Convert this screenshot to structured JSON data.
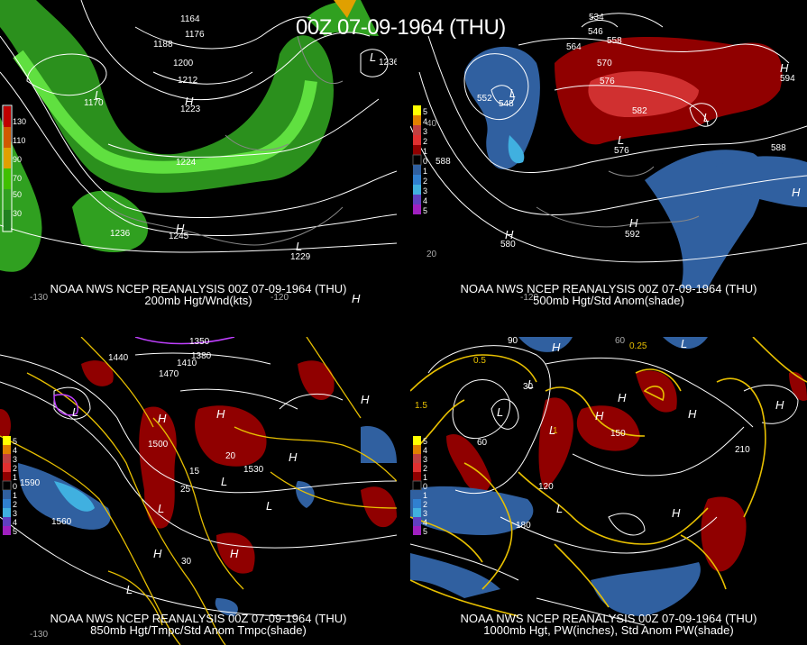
{
  "title": "00Z 07-09-1964 (THU)",
  "panels": [
    {
      "caption_line1": "NOAA NWS NCEP REANALYSIS 00Z 07-09-1964 (THU)",
      "caption_line2": "200mb Hgt/Wnd(kts)",
      "legend": [
        "130",
        "110",
        "90",
        "70",
        "50",
        "30"
      ],
      "legend_colors": [
        "#c00000",
        "#d05a00",
        "#e0a000",
        "#40c000",
        "#30a020",
        "#208020"
      ],
      "contours": [
        "1164",
        "1176",
        "1188",
        "1200",
        "1212",
        "1224",
        "1236",
        "1170",
        "1223",
        "1245",
        "1229",
        "1236"
      ],
      "lon_labels": [
        "-130",
        "-120"
      ]
    },
    {
      "caption_line1": "NOAA NWS NCEP REANALYSIS 00Z 07-09-1964 (THU)",
      "caption_line2": "500mb Hgt/Std Anom(shade)",
      "legend": [
        "5",
        "4",
        "3",
        "2",
        "1",
        "0",
        "1",
        "2",
        "3",
        "4",
        "5"
      ],
      "legend_colors": [
        "#ffff00",
        "#e08000",
        "#c04040",
        "#e03030",
        "#900000",
        "#000000",
        "#3060a0",
        "#3080d0",
        "#40b0e0",
        "#6040c0",
        "#a020c0"
      ],
      "contours": [
        "534",
        "546",
        "558",
        "564",
        "570",
        "576",
        "582",
        "588",
        "552",
        "548",
        "576",
        "594",
        "580",
        "592",
        "588"
      ],
      "lon_labels": [
        "-120",
        "40",
        "20"
      ]
    },
    {
      "caption_line1": "NOAA NWS NCEP REANALYSIS 00Z 07-09-1964 (THU)",
      "caption_line2": "850mb Hgt/Tmpc/Std Anom Tmpc(shade)",
      "legend": [
        "5",
        "4",
        "3",
        "2",
        "1",
        "0",
        "1",
        "2",
        "3",
        "4",
        "5"
      ],
      "contours": [
        "1350",
        "1380",
        "1410",
        "1440",
        "1470",
        "1500",
        "1530",
        "1560",
        "1590",
        "15",
        "20",
        "25",
        "30"
      ],
      "lon_labels": [
        "-130"
      ]
    },
    {
      "caption_line1": "NOAA NWS NCEP REANALYSIS 00Z 07-09-1964 (THU)",
      "caption_line2": "1000mb Hgt, PW(inches), Std Anom PW(shade)",
      "legend": [
        "5",
        "4",
        "3",
        "2",
        "1",
        "0",
        "1",
        "2",
        "3",
        "4",
        "5"
      ],
      "contours": [
        "90",
        "60",
        "30",
        "120",
        "150",
        "180",
        "210",
        "0.5",
        "1",
        "1.5",
        "0.25"
      ],
      "lon_labels": [
        "60"
      ]
    }
  ]
}
